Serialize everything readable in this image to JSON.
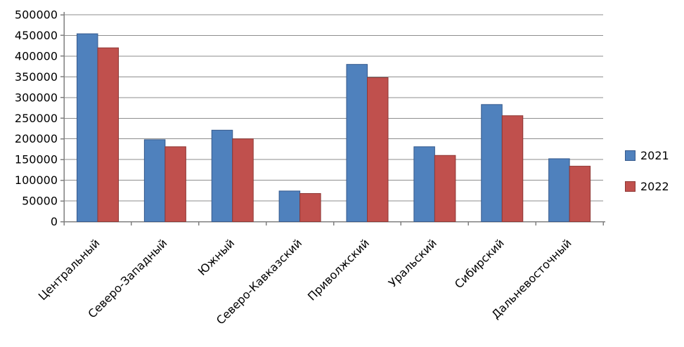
{
  "chart_data": {
    "type": "bar",
    "title": "",
    "xlabel": "",
    "ylabel": "",
    "categories": [
      "Центральный",
      "Северо-Западный",
      "Южный",
      "Северо-Кавказский",
      "Приволжский",
      "Уральский",
      "Сибирский",
      "Дальневосточный"
    ],
    "series": [
      {
        "name": "2021",
        "color": "#4F81BD",
        "border_color": "#35598C",
        "values": [
          454000,
          198000,
          221000,
          74000,
          380000,
          181000,
          283000,
          152000
        ]
      },
      {
        "name": "2022",
        "color": "#C0504D",
        "border_color": "#8E3734",
        "values": [
          420000,
          181000,
          200000,
          68000,
          348000,
          160000,
          256000,
          134000
        ]
      }
    ],
    "ylim": [
      0,
      500000
    ],
    "ytick_step": 50000,
    "ytick_labels": [
      "0",
      "50000",
      "100000",
      "150000",
      "200000",
      "250000",
      "300000",
      "350000",
      "400000",
      "450000",
      "500000"
    ],
    "grid": true,
    "legend_position": "right",
    "legend_labels": [
      "2021",
      "2022"
    ],
    "axis_color": "#808080",
    "grid_color": "#8E8E8E",
    "text_color": "#000000",
    "background_color": "#FFFFFF"
  }
}
